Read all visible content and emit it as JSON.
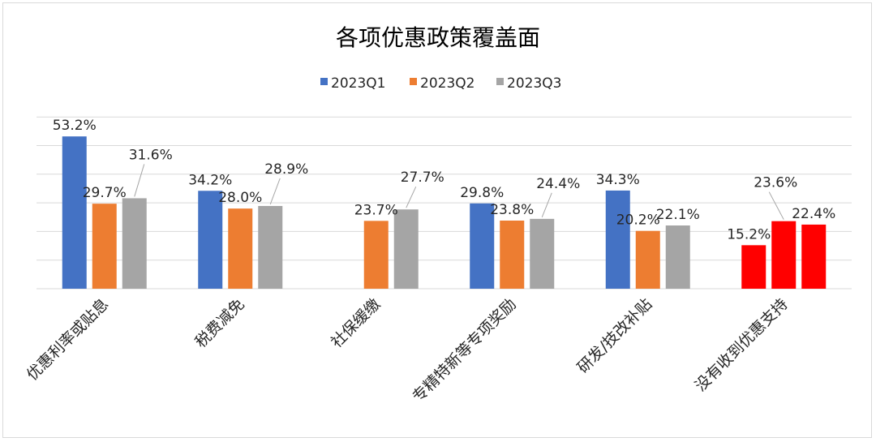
{
  "chart_data": {
    "type": "bar",
    "title": "各项优惠政策覆盖面",
    "categories": [
      "优惠利率或贴息",
      "税费减免",
      "社保缓缴",
      "专精特新等专项奖励",
      "研发/技改补贴",
      "没有收到优惠支持"
    ],
    "series": [
      {
        "name": "2023Q1",
        "color": "#4472C4",
        "values": [
          53.2,
          34.2,
          null,
          29.8,
          34.3,
          15.2
        ],
        "labels": [
          "53.2%",
          "34.2%",
          "",
          "29.8%",
          "34.3%",
          "15.2%"
        ]
      },
      {
        "name": "2023Q2",
        "color": "#ED7D31",
        "values": [
          29.7,
          28.0,
          23.7,
          23.8,
          20.2,
          23.6
        ],
        "labels": [
          "29.7%",
          "28.0%",
          "23.7%",
          "23.8%",
          "20.2%",
          "23.6%"
        ]
      },
      {
        "name": "2023Q3",
        "color": "#A5A5A5",
        "values": [
          31.6,
          28.9,
          27.7,
          24.4,
          22.1,
          22.4
        ],
        "labels": [
          "31.6%",
          "28.9%",
          "27.7%",
          "24.4%",
          "22.1%",
          "22.4%"
        ]
      }
    ],
    "highlight": {
      "category_index": 5,
      "color": "#FF0000"
    },
    "ylim": [
      0,
      60
    ],
    "grid": true,
    "legend": "top-center",
    "xlabel": "",
    "ylabel": ""
  }
}
